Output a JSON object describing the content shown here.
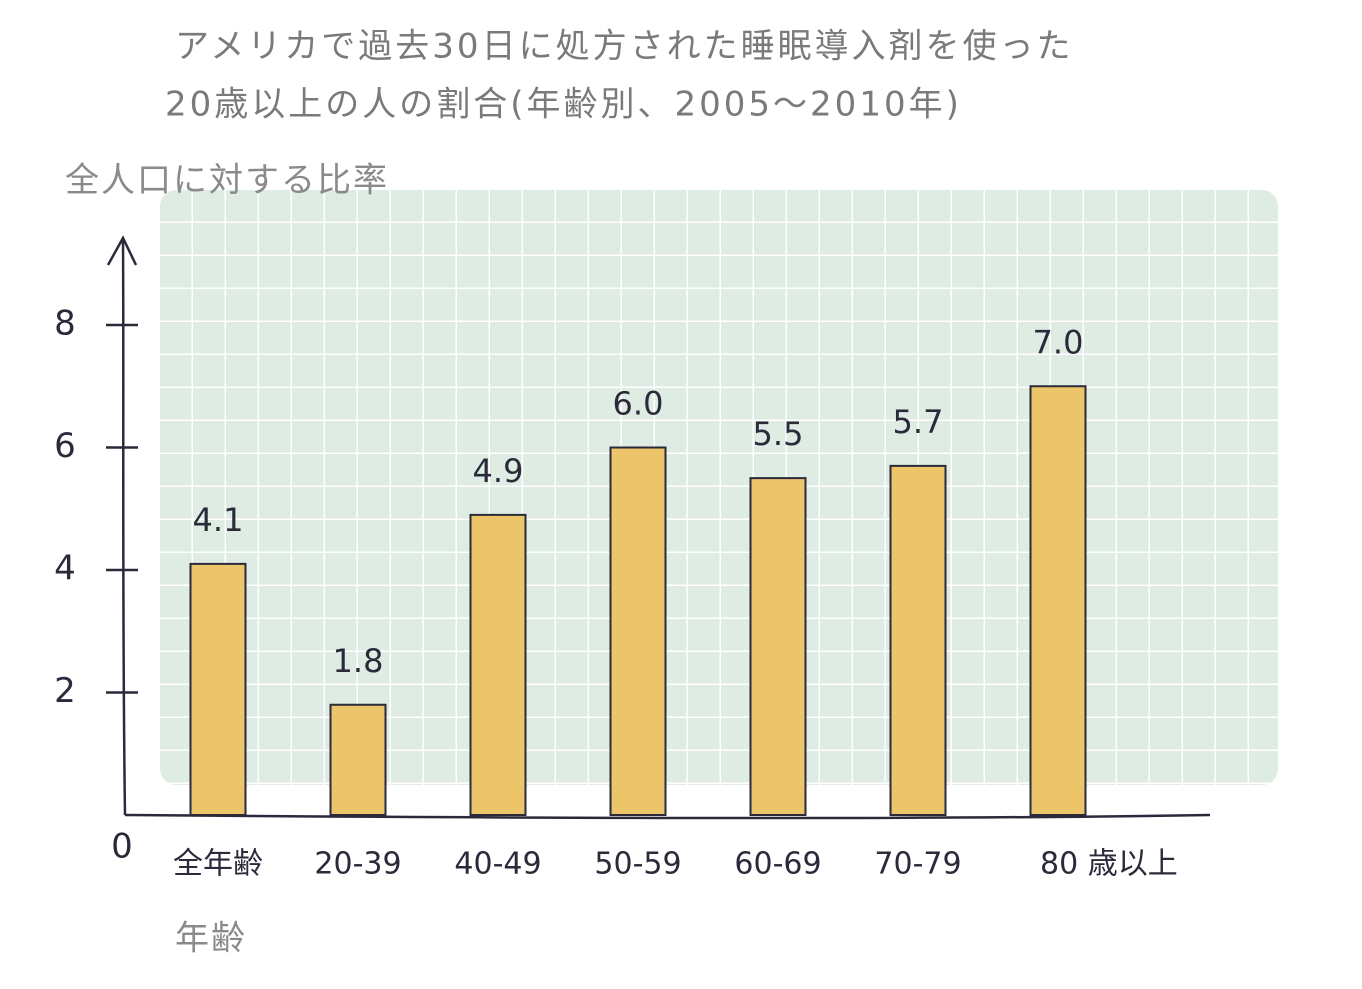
{
  "chart_data": {
    "type": "bar",
    "title": [
      "アメリカで過去30日に処方された睡眠導入剤を使った",
      "20歳以上の人の割合(年齢別、2005～2010年)"
    ],
    "y_label": "全人口に対する比率",
    "x_label": "年齢",
    "categories": [
      "全年齢",
      "20-39",
      "40-49",
      "50-59",
      "60-69",
      "70-79",
      "80 歳以上"
    ],
    "values": [
      4.1,
      1.8,
      4.9,
      6.0,
      5.5,
      5.7,
      7.0
    ],
    "value_labels": [
      "4.1",
      "1.8",
      "4.9",
      "6.0",
      "5.5",
      "5.7",
      "7.0"
    ],
    "color": "#ecc46a",
    "ylim": [
      0,
      9.5
    ],
    "yticks": [
      0,
      2,
      4,
      6,
      8
    ]
  }
}
